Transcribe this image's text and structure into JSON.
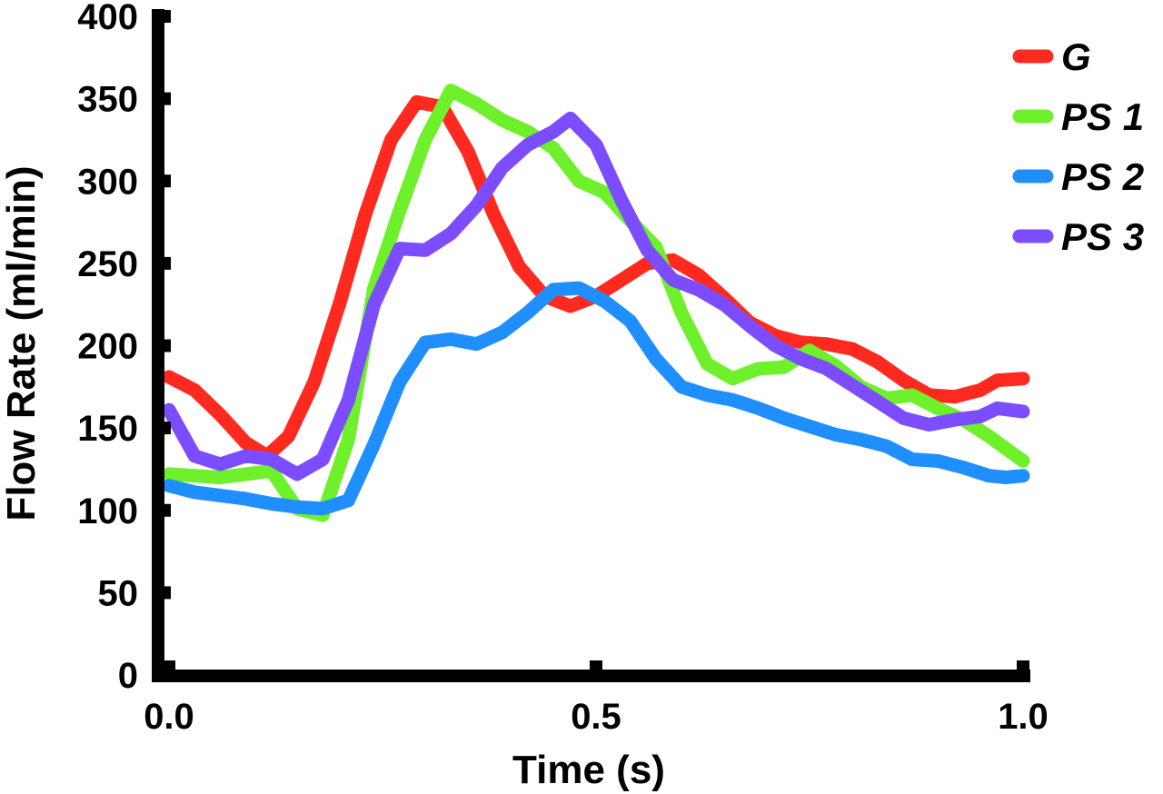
{
  "chart_data": {
    "type": "line",
    "title": "",
    "xlabel": "Time (s)",
    "ylabel": "Flow Rate (ml/min)",
    "xlim": [
      0.0,
      1.0
    ],
    "ylim": [
      0,
      400
    ],
    "xticks": [
      0.0,
      0.5,
      1.0
    ],
    "xtick_labels": [
      "0.0",
      "0.5",
      "1.0"
    ],
    "yticks": [
      0,
      50,
      100,
      150,
      200,
      250,
      300,
      350,
      400
    ],
    "ytick_labels": [
      "0",
      "50",
      "100",
      "150",
      "200",
      "250",
      "300",
      "350",
      "400"
    ],
    "grid": false,
    "legend_position": "top-right",
    "series": [
      {
        "name": "G",
        "color": "#ff2a1f",
        "x": [
          0.0,
          0.03,
          0.06,
          0.09,
          0.115,
          0.14,
          0.17,
          0.2,
          0.23,
          0.26,
          0.29,
          0.32,
          0.35,
          0.38,
          0.41,
          0.44,
          0.47,
          0.5,
          0.53,
          0.56,
          0.59,
          0.62,
          0.65,
          0.68,
          0.71,
          0.74,
          0.77,
          0.8,
          0.83,
          0.86,
          0.89,
          0.92,
          0.95,
          0.97,
          1.0
        ],
        "values": [
          181,
          173,
          158,
          141,
          133,
          145,
          178,
          226,
          280,
          325,
          348,
          345,
          318,
          280,
          248,
          230,
          224,
          230,
          240,
          250,
          252,
          243,
          229,
          214,
          206,
          202,
          201,
          198,
          190,
          179,
          170,
          169,
          173,
          179,
          180
        ]
      },
      {
        "name": "PS 1",
        "color": "#6ef02a",
        "x": [
          0.0,
          0.03,
          0.06,
          0.09,
          0.12,
          0.15,
          0.18,
          0.21,
          0.24,
          0.27,
          0.3,
          0.33,
          0.36,
          0.39,
          0.42,
          0.45,
          0.48,
          0.51,
          0.54,
          0.57,
          0.6,
          0.63,
          0.66,
          0.69,
          0.72,
          0.75,
          0.78,
          0.81,
          0.84,
          0.87,
          0.9,
          0.93,
          0.96,
          1.0
        ],
        "values": [
          122,
          121,
          120,
          122,
          124,
          101,
          97,
          143,
          235,
          282,
          325,
          355,
          347,
          337,
          330,
          320,
          300,
          293,
          276,
          260,
          220,
          189,
          180,
          186,
          187,
          197,
          188,
          175,
          168,
          170,
          162,
          155,
          145,
          130
        ]
      },
      {
        "name": "PS 2",
        "color": "#1f8fff",
        "x": [
          0.0,
          0.03,
          0.06,
          0.09,
          0.12,
          0.15,
          0.18,
          0.21,
          0.24,
          0.27,
          0.3,
          0.33,
          0.36,
          0.39,
          0.42,
          0.45,
          0.48,
          0.51,
          0.54,
          0.57,
          0.6,
          0.63,
          0.66,
          0.69,
          0.72,
          0.75,
          0.78,
          0.81,
          0.84,
          0.87,
          0.9,
          0.93,
          0.96,
          0.98,
          1.0
        ],
        "values": [
          115,
          111,
          109,
          107,
          104,
          102,
          101,
          106,
          140,
          178,
          202,
          204,
          201,
          208,
          220,
          234,
          235,
          227,
          215,
          192,
          175,
          170,
          167,
          162,
          156,
          151,
          146,
          143,
          139,
          131,
          130,
          126,
          121,
          120,
          121
        ]
      },
      {
        "name": "PS 3",
        "color": "#7b4dff",
        "x": [
          0.0,
          0.03,
          0.06,
          0.09,
          0.12,
          0.15,
          0.18,
          0.21,
          0.24,
          0.27,
          0.3,
          0.33,
          0.36,
          0.39,
          0.42,
          0.45,
          0.47,
          0.5,
          0.53,
          0.56,
          0.59,
          0.62,
          0.65,
          0.68,
          0.71,
          0.74,
          0.77,
          0.8,
          0.83,
          0.86,
          0.89,
          0.92,
          0.95,
          0.97,
          1.0
        ],
        "values": [
          161,
          133,
          128,
          133,
          131,
          122,
          131,
          167,
          225,
          259,
          258,
          268,
          285,
          308,
          322,
          330,
          338,
          322,
          288,
          258,
          240,
          234,
          225,
          212,
          200,
          192,
          186,
          176,
          166,
          156,
          152,
          155,
          157,
          162,
          160
        ]
      }
    ]
  }
}
